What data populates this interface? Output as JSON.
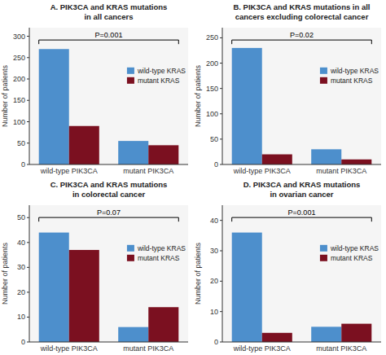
{
  "chart_data": [
    {
      "type": "bar",
      "title": "A. PIK3CA and KRAS mutations\nin all cancers",
      "categories": [
        "wild-type PIK3CA",
        "mutant PIK3CA"
      ],
      "series": [
        {
          "name": "wild-type KRAS",
          "color": "#4d8fcc",
          "values": [
            270,
            55
          ]
        },
        {
          "name": "mutant KRAS",
          "color": "#7b1020",
          "values": [
            90,
            45
          ]
        }
      ],
      "ylabel": "Number of patients",
      "ylim": [
        0,
        320
      ],
      "yticks": [
        0,
        50,
        100,
        150,
        200,
        250,
        300
      ],
      "annotations": [
        "P=0.001"
      ],
      "legend": "right",
      "grid": false
    },
    {
      "type": "bar",
      "title": "B. PIK3CA and KRAS mutations in all\ncancers excluding colorectal cancer",
      "categories": [
        "wild-type PIK3CA",
        "mutant PIK3CA"
      ],
      "series": [
        {
          "name": "wild-type KRAS",
          "color": "#4d8fcc",
          "values": [
            230,
            30
          ]
        },
        {
          "name": "mutant KRAS",
          "color": "#7b1020",
          "values": [
            20,
            10
          ]
        }
      ],
      "ylabel": "Number of patients",
      "ylim": [
        0,
        270
      ],
      "yticks": [
        0,
        50,
        100,
        150,
        200,
        250
      ],
      "annotations": [
        "P=0.02"
      ],
      "legend": "right",
      "grid": false
    },
    {
      "type": "bar",
      "title": "C. PIK3CA and KRAS mutations\nin colorectal cancer",
      "categories": [
        "wild-type PIK3CA",
        "mutant PIK3CA"
      ],
      "series": [
        {
          "name": "wild-type KRAS",
          "color": "#4d8fcc",
          "values": [
            44,
            6
          ]
        },
        {
          "name": "mutant KRAS",
          "color": "#7b1020",
          "values": [
            37,
            14
          ]
        }
      ],
      "ylabel": "Number of patients",
      "ylim": [
        0,
        55
      ],
      "yticks": [
        0,
        10,
        20,
        30,
        40,
        50
      ],
      "annotations": [
        "P=0.07"
      ],
      "legend": "right",
      "grid": false
    },
    {
      "type": "bar",
      "title": "D. PIK3CA and KRAS mutations\nin ovarian cancer",
      "categories": [
        "wild-type PIK3CA",
        "mutant PIK3CA"
      ],
      "series": [
        {
          "name": "wild-type KRAS",
          "color": "#4d8fcc",
          "values": [
            36,
            5
          ]
        },
        {
          "name": "mutant KRAS",
          "color": "#7b1020",
          "values": [
            3,
            6
          ]
        }
      ],
      "ylabel": "Number of patients",
      "ylim": [
        0,
        45
      ],
      "yticks": [
        0,
        10,
        20,
        30,
        40
      ],
      "annotations": [
        "P=0.001"
      ],
      "legend": "right",
      "grid": false
    }
  ]
}
